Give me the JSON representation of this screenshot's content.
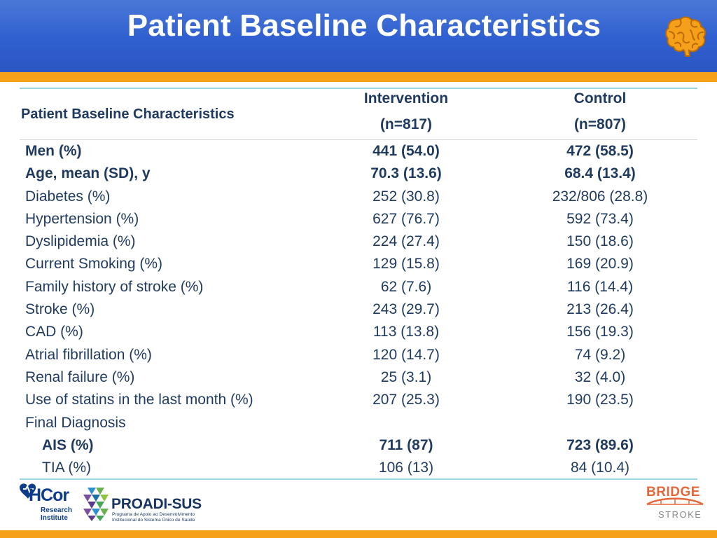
{
  "slide": {
    "title": "Patient Baseline Characteristics"
  },
  "table": {
    "header": {
      "label": "Patient Baseline Characteristics",
      "intervention": {
        "line1": "Intervention",
        "line2": "(n=817)"
      },
      "control": {
        "line1": "Control",
        "line2": "(n=807)"
      }
    },
    "rows": [
      {
        "label": "Men (%)",
        "intervention": "441 (54.0)",
        "control": "472 (58.5)",
        "bold": true
      },
      {
        "label": "Age, mean (SD), y",
        "intervention": "70.3 (13.6)",
        "control": "68.4 (13.4)",
        "bold": true
      },
      {
        "label": "Diabetes (%)",
        "intervention": "252 (30.8)",
        "control": "232/806 (28.8)"
      },
      {
        "label": "Hypertension (%)",
        "intervention": "627 (76.7)",
        "control": "592 (73.4)"
      },
      {
        "label": "Dyslipidemia (%)",
        "intervention": "224 (27.4)",
        "control": "150 (18.6)"
      },
      {
        "label": "Current Smoking (%)",
        "intervention": "129 (15.8)",
        "control": "169 (20.9)"
      },
      {
        "label": "Family history of stroke (%)",
        "intervention": "62 (7.6)",
        "control": "116 (14.4)"
      },
      {
        "label": "Stroke (%)",
        "intervention": "243 (29.7)",
        "control": "213 (26.4)"
      },
      {
        "label": "CAD (%)",
        "intervention": "113 (13.8)",
        "control": "156 (19.3)"
      },
      {
        "label": "Atrial fibrillation (%)",
        "intervention": "120 (14.7)",
        "control": "74 (9.2)"
      },
      {
        "label": "Renal failure (%)",
        "intervention": "25 (3.1)",
        "control": "32 (4.0)"
      },
      {
        "label": "Use of statins in the last month (%)",
        "intervention": "207 (25.3)",
        "control": "190 (23.5)"
      },
      {
        "label": "Final Diagnosis",
        "intervention": "",
        "control": ""
      },
      {
        "label": "AIS (%)",
        "intervention": "711 (87)",
        "control": "723 (89.6)",
        "bold": true,
        "indent": true
      },
      {
        "label": "TIA (%)",
        "intervention": "106 (13)",
        "control": "84 (10.4)",
        "indent": true
      }
    ]
  },
  "logos": {
    "hcor": {
      "name": "HCor",
      "sub1": "Research",
      "sub2": "Institute"
    },
    "proadi": {
      "name": "PROADI-SUS",
      "sub1": "Programa de Apoio ao Desenvolvimento",
      "sub2": "Institucional do Sistema Único de Saúde"
    },
    "bridge": {
      "name": "BRIDGE",
      "sub": "STROKE"
    }
  },
  "colors": {
    "header_blue": "#2f5fcf",
    "accent_orange": "#f6a01a",
    "text_navy": "#1f3a5f",
    "rule_teal": "#9cd6de"
  },
  "icons": {
    "header_icon": "brain-icon"
  }
}
